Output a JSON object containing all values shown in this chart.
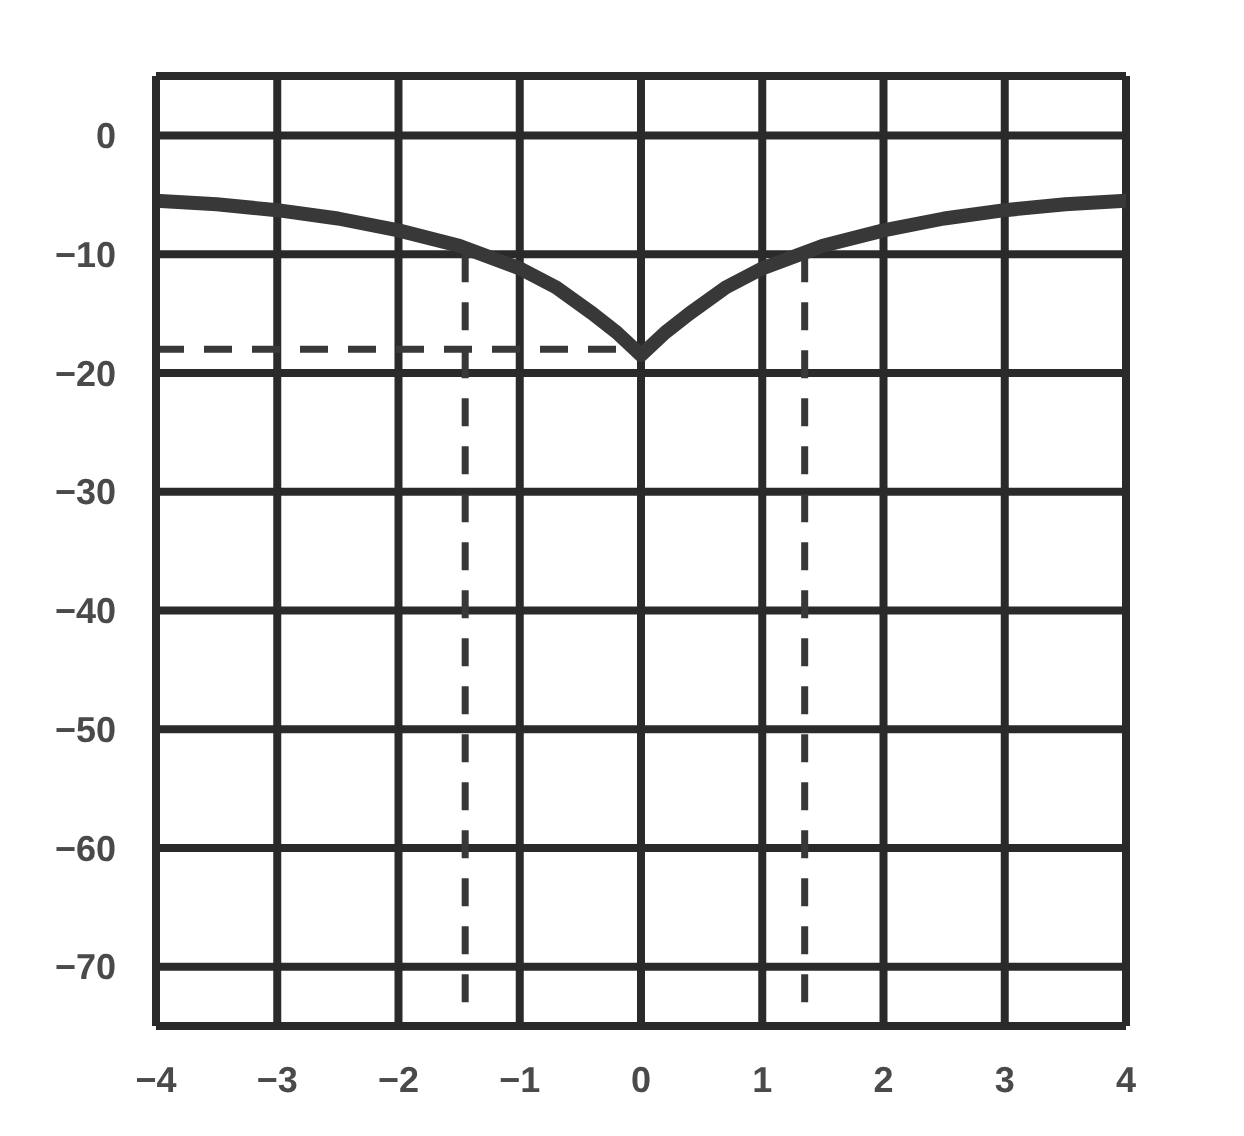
{
  "chart_data": {
    "type": "line",
    "xlim": [
      -4,
      4
    ],
    "ylim": [
      -75,
      5
    ],
    "xticks": [
      {
        "value": -4,
        "label": "−4"
      },
      {
        "value": -3,
        "label": "−3"
      },
      {
        "value": -2,
        "label": "−2"
      },
      {
        "value": -1,
        "label": "−1"
      },
      0,
      1,
      2,
      3,
      4
    ],
    "yticks": [
      0,
      {
        "value": -10,
        "label": "−10"
      },
      {
        "value": -20,
        "label": "−20"
      },
      {
        "value": -30,
        "label": "−30"
      },
      {
        "value": -40,
        "label": "−40"
      },
      {
        "value": -50,
        "label": "−50"
      },
      {
        "value": -60,
        "label": "−60"
      },
      {
        "value": -70,
        "label": "−70"
      }
    ],
    "grid": true,
    "marker": "none",
    "series": [
      {
        "color": "#383838",
        "line_style": "solid",
        "x": [
          -4,
          -3.5,
          -3,
          -2.5,
          -2,
          -1.5,
          -1,
          -0.7,
          -0.4,
          -0.2,
          0,
          0.2,
          0.4,
          0.7,
          1,
          1.5,
          2,
          2.5,
          3,
          3.5,
          4
        ],
        "values": [
          -5.5,
          -5.8,
          -6.3,
          -7,
          -8,
          -9.3,
          -11.2,
          -12.8,
          -15,
          -16.6,
          -18.5,
          -16.6,
          -15,
          -12.8,
          -11.2,
          -9.3,
          -8,
          -7,
          -6.3,
          -5.8,
          -5.5
        ]
      },
      {
        "color": "#383838",
        "line_style": "dashed",
        "x": [
          -4,
          0
        ],
        "values": [
          -18,
          -18
        ]
      },
      {
        "color": "#383838",
        "line_style": "dashed",
        "x": [
          -1.45,
          -1.45
        ],
        "values": [
          -10,
          -73
        ]
      },
      {
        "color": "#383838",
        "line_style": "dashed",
        "x": [
          1.35,
          1.35
        ],
        "values": [
          -10,
          -73
        ]
      }
    ]
  }
}
